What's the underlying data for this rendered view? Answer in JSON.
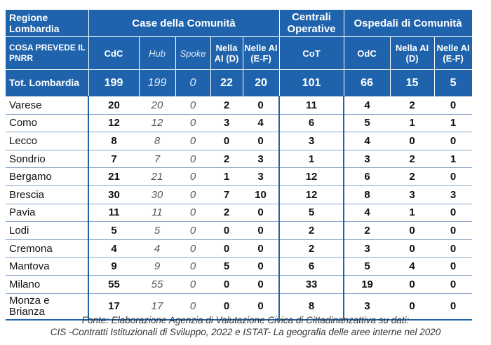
{
  "header": {
    "region": "Regione Lombardia",
    "groups": {
      "case": "Case della Comunità",
      "centrali": "Centrali Operative",
      "ospedali": "Ospedali di Comunità"
    },
    "pnrr_label": "COSA PREVEDE IL PNRR",
    "columns": {
      "cdc": "CdC",
      "hub": "Hub",
      "spoke": "Spoke",
      "case_ai_d": "Nella AI (D)",
      "case_ai_ef": "Nelle AI (E-F)",
      "cot": "CoT",
      "odc": "OdC",
      "osp_ai_d": "Nella AI (D)",
      "osp_ai_ef": "Nelle AI (E-F)"
    }
  },
  "total": {
    "label": "Tot. Lombardia",
    "cdc": "199",
    "hub": "199",
    "spoke": "0",
    "case_ai_d": "22",
    "case_ai_ef": "20",
    "cot": "101",
    "odc": "66",
    "osp_ai_d": "15",
    "osp_ai_ef": "5"
  },
  "rows": [
    {
      "name": "Varese",
      "cdc": "20",
      "hub": "20",
      "spoke": "0",
      "case_ai_d": "2",
      "case_ai_ef": "0",
      "cot": "11",
      "odc": "4",
      "osp_ai_d": "2",
      "osp_ai_ef": "0"
    },
    {
      "name": "Como",
      "cdc": "12",
      "hub": "12",
      "spoke": "0",
      "case_ai_d": "3",
      "case_ai_ef": "4",
      "cot": "6",
      "odc": "5",
      "osp_ai_d": "1",
      "osp_ai_ef": "1"
    },
    {
      "name": "Lecco",
      "cdc": "8",
      "hub": "8",
      "spoke": "0",
      "case_ai_d": "0",
      "case_ai_ef": "0",
      "cot": "3",
      "odc": "4",
      "osp_ai_d": "0",
      "osp_ai_ef": "0"
    },
    {
      "name": "Sondrio",
      "cdc": "7",
      "hub": "7",
      "spoke": "0",
      "case_ai_d": "2",
      "case_ai_ef": "3",
      "cot": "1",
      "odc": "3",
      "osp_ai_d": "2",
      "osp_ai_ef": "1"
    },
    {
      "name": "Bergamo",
      "cdc": "21",
      "hub": "21",
      "spoke": "0",
      "case_ai_d": "1",
      "case_ai_ef": "3",
      "cot": "12",
      "odc": "6",
      "osp_ai_d": "2",
      "osp_ai_ef": "0"
    },
    {
      "name": "Brescia",
      "cdc": "30",
      "hub": "30",
      "spoke": "0",
      "case_ai_d": "7",
      "case_ai_ef": "10",
      "cot": "12",
      "odc": "8",
      "osp_ai_d": "3",
      "osp_ai_ef": "3"
    },
    {
      "name": "Pavia",
      "cdc": "11",
      "hub": "11",
      "spoke": "0",
      "case_ai_d": "2",
      "case_ai_ef": "0",
      "cot": "5",
      "odc": "4",
      "osp_ai_d": "1",
      "osp_ai_ef": "0"
    },
    {
      "name": "Lodi",
      "cdc": "5",
      "hub": "5",
      "spoke": "0",
      "case_ai_d": "0",
      "case_ai_ef": "0",
      "cot": "2",
      "odc": "2",
      "osp_ai_d": "0",
      "osp_ai_ef": "0"
    },
    {
      "name": "Cremona",
      "cdc": "4",
      "hub": "4",
      "spoke": "0",
      "case_ai_d": "0",
      "case_ai_ef": "0",
      "cot": "2",
      "odc": "3",
      "osp_ai_d": "0",
      "osp_ai_ef": "0"
    },
    {
      "name": "Mantova",
      "cdc": "9",
      "hub": "9",
      "spoke": "0",
      "case_ai_d": "5",
      "case_ai_ef": "0",
      "cot": "6",
      "odc": "5",
      "osp_ai_d": "4",
      "osp_ai_ef": "0"
    },
    {
      "name": "Milano",
      "cdc": "55",
      "hub": "55",
      "spoke": "0",
      "case_ai_d": "0",
      "case_ai_ef": "0",
      "cot": "33",
      "odc": "19",
      "osp_ai_d": "0",
      "osp_ai_ef": "0"
    },
    {
      "name": "Monza e Brianza",
      "cdc": "17",
      "hub": "17",
      "spoke": "0",
      "case_ai_d": "0",
      "case_ai_ef": "0",
      "cot": "8",
      "odc": "3",
      "osp_ai_d": "0",
      "osp_ai_ef": "0"
    }
  ],
  "footnote": {
    "line1": "Fonte: Elaborazione Agenzia di Valutazione Civica di Cittadinanzattiva su dati:",
    "line2": "CIS -Contratti Istituzionali di Sviluppo, 2022 e ISTAT- La geografia delle aree interne nel 2020"
  }
}
